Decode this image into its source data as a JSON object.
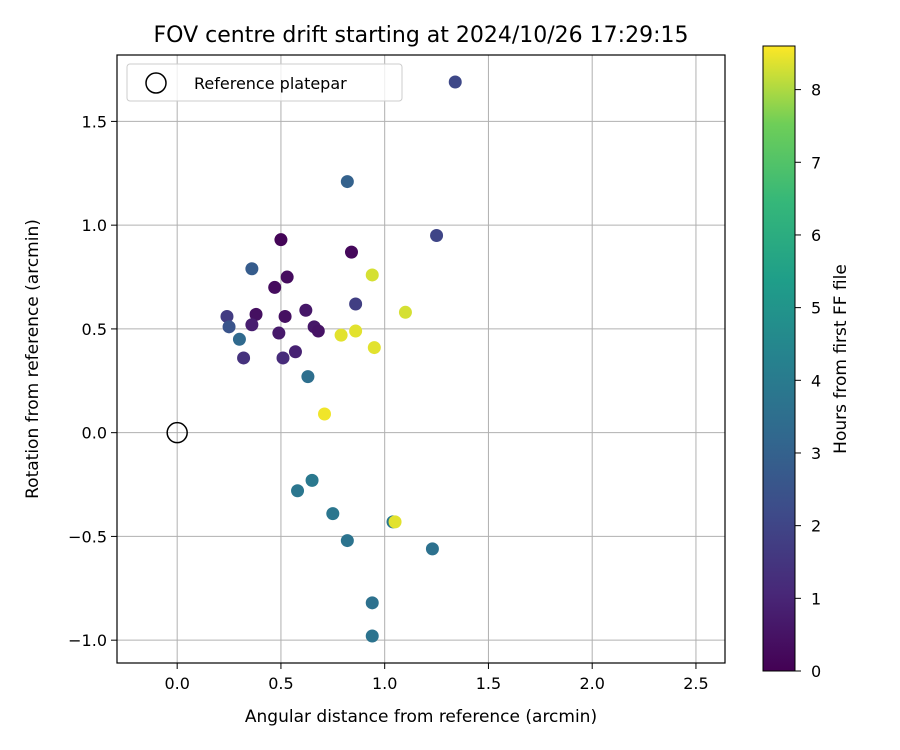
{
  "chart_data": {
    "type": "scatter",
    "title": "FOV centre drift starting at 2024/10/26 17:29:15",
    "xlabel": "Angular distance from reference (arcmin)",
    "ylabel": "Rotation from reference (arcmin)",
    "xlim": [
      -0.29,
      2.64
    ],
    "ylim": [
      -1.11,
      1.82
    ],
    "x_ticks": [
      0.0,
      0.5,
      1.0,
      1.5,
      2.0,
      2.5
    ],
    "x_tick_labels": [
      "0.0",
      "0.5",
      "1.0",
      "1.5",
      "2.0",
      "2.5"
    ],
    "y_ticks": [
      -1.0,
      -0.5,
      0.0,
      0.5,
      1.0,
      1.5
    ],
    "y_tick_labels": [
      "−1.0",
      "−0.5",
      "0.0",
      "0.5",
      "1.0",
      "1.5"
    ],
    "grid": true,
    "legend": {
      "placement": "top-left",
      "entries": [
        {
          "label": "Reference platepar",
          "marker": "open-circle"
        }
      ]
    },
    "reference_point": {
      "x": 0.0,
      "y": 0.0
    },
    "colorbar": {
      "label": "Hours from first FF file",
      "range": [
        0,
        8.6
      ],
      "ticks": [
        0,
        1,
        2,
        3,
        4,
        5,
        6,
        7,
        8
      ],
      "colormap": "viridis"
    },
    "points": [
      {
        "x": 0.5,
        "y": 0.93,
        "hours": 0.1
      },
      {
        "x": 0.84,
        "y": 0.87,
        "hours": 0.2
      },
      {
        "x": 0.53,
        "y": 0.75,
        "hours": 0.3
      },
      {
        "x": 0.47,
        "y": 0.7,
        "hours": 0.3
      },
      {
        "x": 0.38,
        "y": 0.57,
        "hours": 0.4
      },
      {
        "x": 0.52,
        "y": 0.56,
        "hours": 0.4
      },
      {
        "x": 0.62,
        "y": 0.59,
        "hours": 0.6
      },
      {
        "x": 0.66,
        "y": 0.51,
        "hours": 0.6
      },
      {
        "x": 0.68,
        "y": 0.49,
        "hours": 0.5
      },
      {
        "x": 0.36,
        "y": 0.52,
        "hours": 0.8
      },
      {
        "x": 0.49,
        "y": 0.48,
        "hours": 0.7
      },
      {
        "x": 0.57,
        "y": 0.39,
        "hours": 0.9
      },
      {
        "x": 0.51,
        "y": 0.36,
        "hours": 1.2
      },
      {
        "x": 0.32,
        "y": 0.36,
        "hours": 1.4
      },
      {
        "x": 0.24,
        "y": 0.56,
        "hours": 1.7
      },
      {
        "x": 0.86,
        "y": 0.62,
        "hours": 1.8
      },
      {
        "x": 1.25,
        "y": 0.95,
        "hours": 2.0
      },
      {
        "x": 1.34,
        "y": 1.69,
        "hours": 2.1
      },
      {
        "x": 0.25,
        "y": 0.51,
        "hours": 2.5
      },
      {
        "x": 0.36,
        "y": 0.79,
        "hours": 2.8
      },
      {
        "x": 0.82,
        "y": 1.21,
        "hours": 3.0
      },
      {
        "x": 0.3,
        "y": 0.45,
        "hours": 3.3
      },
      {
        "x": 0.63,
        "y": 0.27,
        "hours": 3.5
      },
      {
        "x": 1.23,
        "y": -0.56,
        "hours": 3.6
      },
      {
        "x": 0.94,
        "y": -0.82,
        "hours": 3.6
      },
      {
        "x": 0.94,
        "y": -0.98,
        "hours": 3.7
      },
      {
        "x": 0.82,
        "y": -0.52,
        "hours": 3.7
      },
      {
        "x": 0.75,
        "y": -0.39,
        "hours": 3.8
      },
      {
        "x": 0.58,
        "y": -0.28,
        "hours": 3.8
      },
      {
        "x": 0.65,
        "y": -0.23,
        "hours": 3.9
      },
      {
        "x": 1.04,
        "y": -0.43,
        "hours": 3.9
      },
      {
        "x": 1.05,
        "y": -0.43,
        "hours": 8.4
      },
      {
        "x": 0.94,
        "y": 0.76,
        "hours": 8.3
      },
      {
        "x": 1.1,
        "y": 0.58,
        "hours": 8.3
      },
      {
        "x": 0.86,
        "y": 0.49,
        "hours": 8.4
      },
      {
        "x": 0.79,
        "y": 0.47,
        "hours": 8.4
      },
      {
        "x": 0.95,
        "y": 0.41,
        "hours": 8.4
      },
      {
        "x": 0.71,
        "y": 0.09,
        "hours": 8.5
      }
    ]
  }
}
